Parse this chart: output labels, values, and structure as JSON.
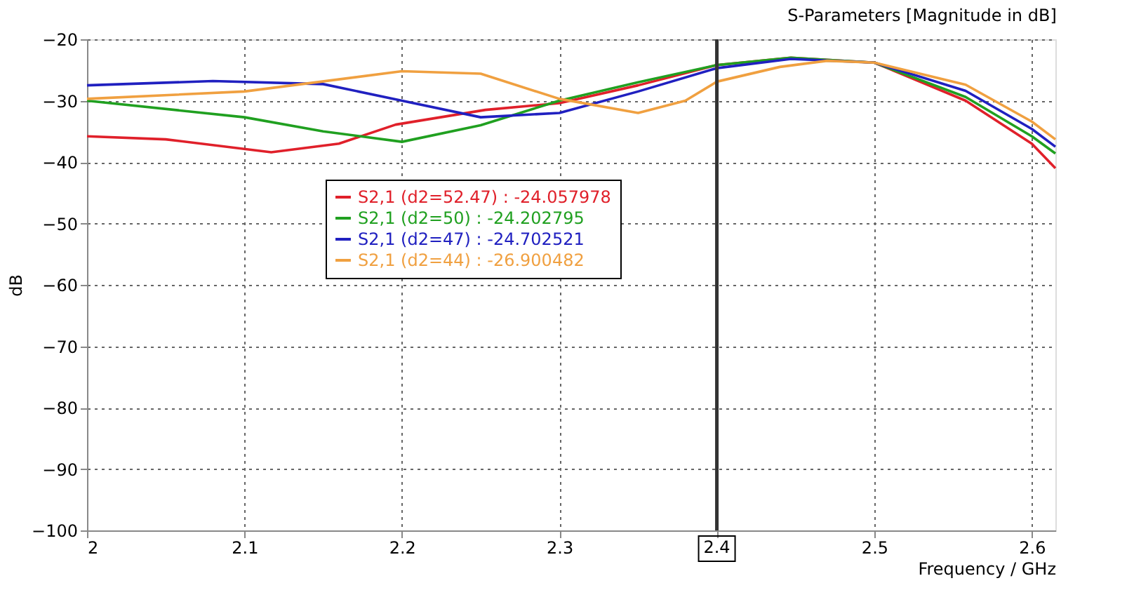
{
  "chart_data": {
    "type": "line",
    "title": "S-Parameters [Magnitude in dB]",
    "xlabel": "Frequency / GHz",
    "ylabel": "dB",
    "xlim": [
      2,
      2.615
    ],
    "ylim": [
      -100,
      -20
    ],
    "xticks": [
      2,
      2.1,
      2.2,
      2.3,
      {
        "value": 2.4,
        "label": null
      },
      2.5,
      2.6
    ],
    "yticks": [
      -100,
      -90,
      -80,
      -70,
      -60,
      -50,
      -40,
      -30,
      -20
    ],
    "grid": true,
    "legend": "top",
    "line_style": "solid",
    "marker": "none",
    "ref_lines": [
      {
        "axis": "x",
        "value": 2.4,
        "label": "2.4",
        "color": "#333333"
      }
    ],
    "series": [
      {
        "name": "S2,1 (d2=52.47) : -24.057978",
        "color": "#e0202a",
        "x": [
          2,
          2.05,
          2.117,
          2.16,
          2.196,
          2.253,
          2.3,
          2.35,
          2.4,
          2.447,
          2.5,
          2.558,
          2.6,
          2.615
        ],
        "values": [
          -35.8,
          -36.3,
          -38.4,
          -37,
          -33.9,
          -31.5,
          -30.4,
          -27.5,
          -24.2,
          -23,
          -23.8,
          -30,
          -37,
          -41
        ]
      },
      {
        "name": "S2,1 (d2=50) : -24.202795",
        "color": "#20a020",
        "x": [
          2,
          2.1,
          2.15,
          2.2,
          2.25,
          2.3,
          2.35,
          2.4,
          2.447,
          2.5,
          2.558,
          2.6,
          2.615
        ],
        "values": [
          -30,
          -32.7,
          -35,
          -36.7,
          -34,
          -30,
          -27,
          -24.2,
          -23,
          -23.8,
          -29.4,
          -35.8,
          -38.6
        ]
      },
      {
        "name": "S2,1 (d2=47) : -24.702521",
        "color": "#2020c0",
        "x": [
          2,
          2.08,
          2.15,
          2.2,
          2.25,
          2.3,
          2.35,
          2.4,
          2.447,
          2.5,
          2.558,
          2.6,
          2.615
        ],
        "values": [
          -27.5,
          -26.8,
          -27.3,
          -30,
          -32.7,
          -32,
          -28.5,
          -24.7,
          -23.2,
          -23.8,
          -28.4,
          -34.6,
          -37.5
        ]
      },
      {
        "name": "S2,1 (d2=44) : -26.900482",
        "color": "#f0a040",
        "x": [
          2,
          2.1,
          2.2,
          2.25,
          2.3,
          2.35,
          2.38,
          2.4,
          2.44,
          2.47,
          2.5,
          2.558,
          2.6,
          2.615
        ],
        "values": [
          -29.7,
          -28.5,
          -25.2,
          -25.6,
          -29.7,
          -32,
          -30,
          -26.9,
          -24.5,
          -23.5,
          -23.8,
          -27.4,
          -33.4,
          -36.3
        ]
      }
    ]
  }
}
